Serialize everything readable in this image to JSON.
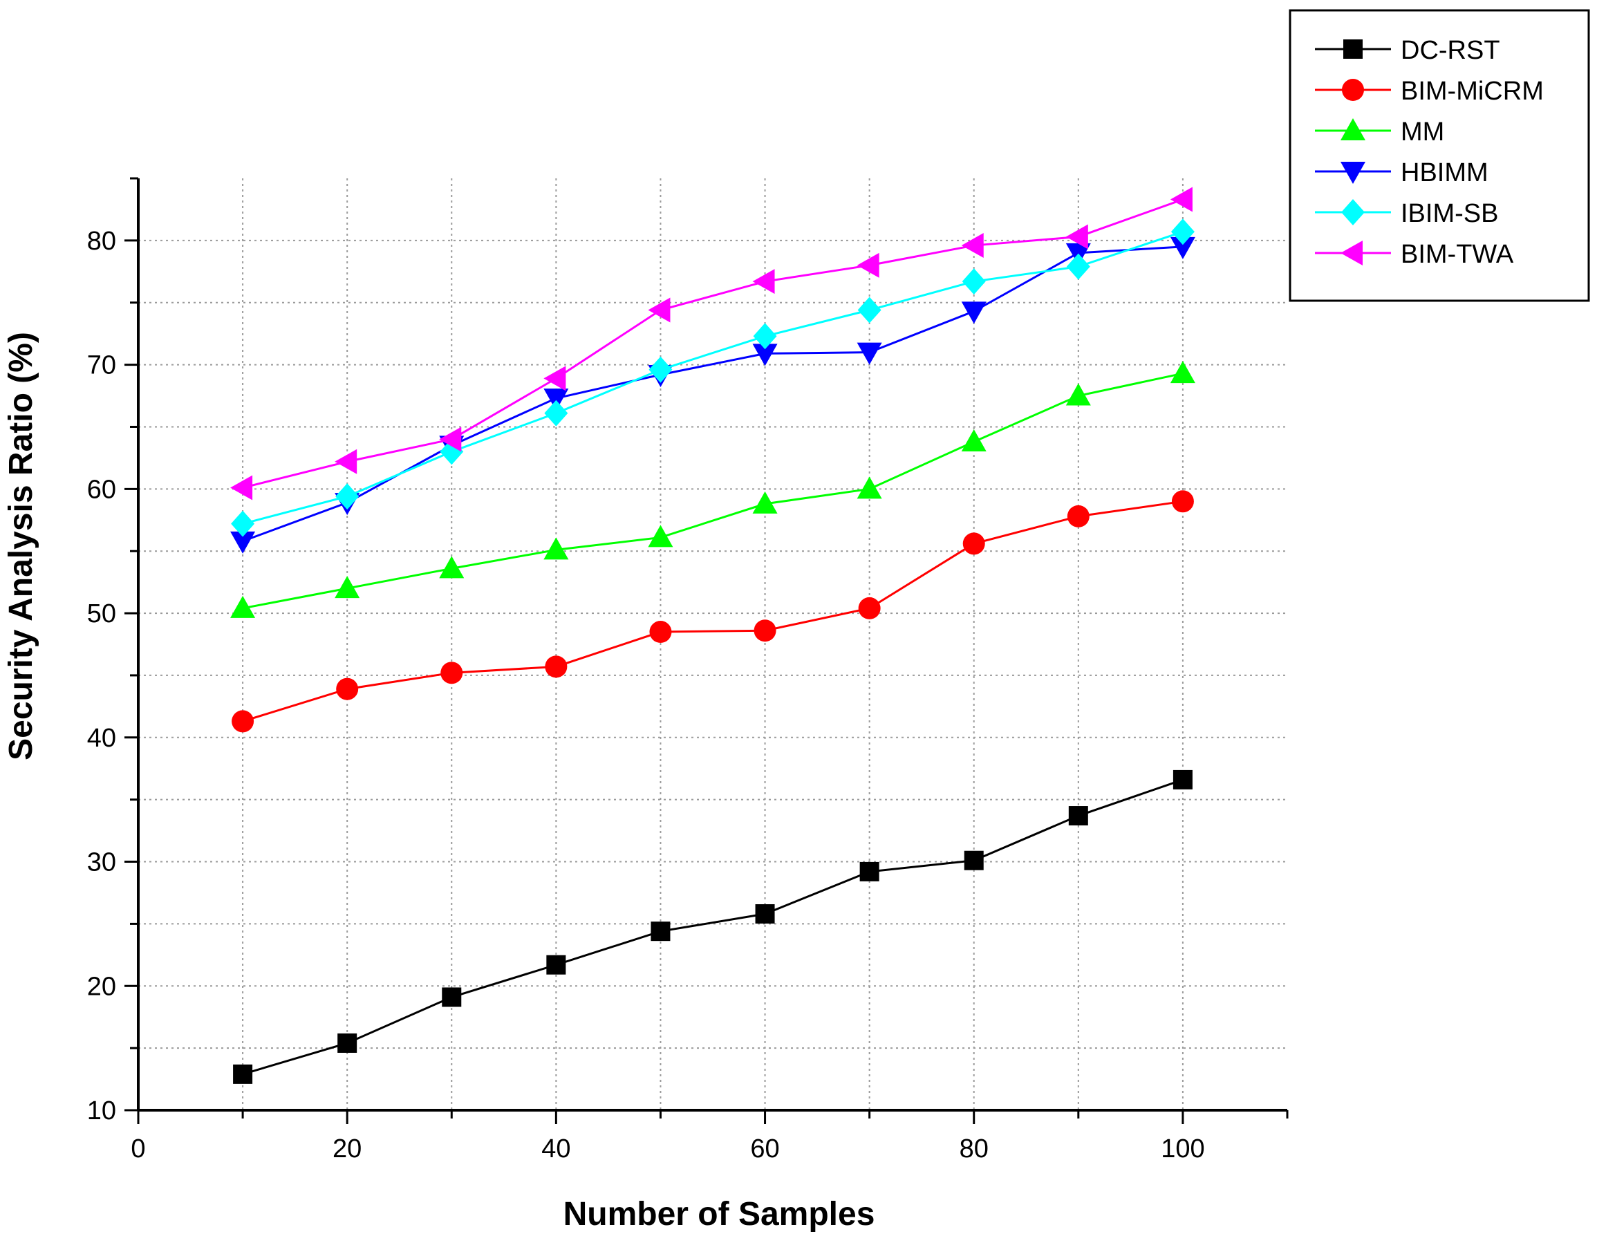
{
  "chart_data": {
    "type": "line",
    "title": "",
    "xlabel": "Number of Samples",
    "ylabel": "Security Analysis Ratio (%)",
    "xlim": [
      0,
      110
    ],
    "ylim": [
      10,
      85
    ],
    "xticks": [
      0,
      20,
      40,
      60,
      80,
      100
    ],
    "yticks": [
      10,
      20,
      30,
      40,
      50,
      60,
      70,
      80
    ],
    "grid": true,
    "legend_position": "top-right, outside plot",
    "x": [
      10,
      20,
      30,
      40,
      50,
      60,
      70,
      80,
      90,
      100
    ],
    "series": [
      {
        "name": "DC-RST",
        "color": "#000000",
        "marker": "square",
        "values": [
          12.9,
          15.4,
          19.1,
          21.7,
          24.4,
          25.8,
          29.2,
          30.1,
          33.7,
          36.6
        ]
      },
      {
        "name": "BIM-MiCRM",
        "color": "#ff0000",
        "marker": "circle",
        "values": [
          41.3,
          43.9,
          45.2,
          45.7,
          48.5,
          48.6,
          50.4,
          55.6,
          57.8,
          59.0
        ]
      },
      {
        "name": "MM",
        "color": "#00ff00",
        "marker": "triangle-up",
        "values": [
          50.4,
          52.0,
          53.6,
          55.1,
          56.1,
          58.8,
          60.0,
          63.8,
          67.5,
          69.3
        ]
      },
      {
        "name": "HBIMM",
        "color": "#0000ff",
        "marker": "triangle-down",
        "values": [
          55.8,
          58.9,
          63.5,
          67.3,
          69.2,
          70.9,
          71.0,
          74.3,
          79.0,
          79.5
        ]
      },
      {
        "name": "IBIM-SB",
        "color": "#00ffff",
        "marker": "diamond",
        "values": [
          57.2,
          59.4,
          63.0,
          66.1,
          69.6,
          72.3,
          74.4,
          76.7,
          77.9,
          80.7
        ]
      },
      {
        "name": "BIM-TWA",
        "color": "#ff00ff",
        "marker": "triangle-left",
        "values": [
          60.1,
          62.2,
          64.0,
          68.9,
          74.4,
          76.7,
          78.0,
          79.6,
          80.3,
          83.3
        ]
      }
    ]
  }
}
